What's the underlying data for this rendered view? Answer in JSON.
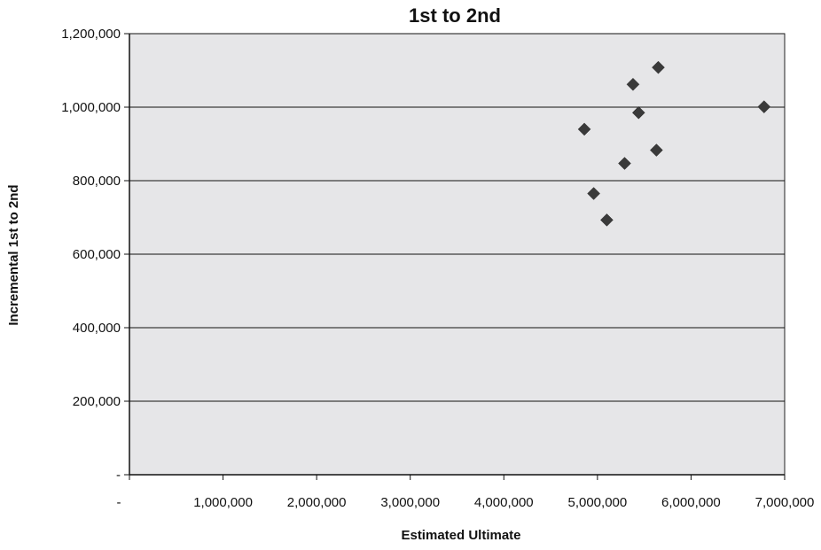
{
  "chart_data": {
    "type": "scatter",
    "title": "1st to 2nd",
    "xlabel": "Estimated Ultimate",
    "ylabel": "Incremental 1st to 2nd",
    "xlim": [
      0,
      7000000
    ],
    "ylim": [
      0,
      1200000
    ],
    "x_ticks": [
      0,
      1000000,
      2000000,
      3000000,
      4000000,
      5000000,
      6000000,
      7000000
    ],
    "x_tick_labels": [
      "-",
      "1,000,000",
      "2,000,000",
      "3,000,000",
      "4,000,000",
      "5,000,000",
      "6,000,000",
      "7,000,000"
    ],
    "y_ticks": [
      0,
      200000,
      400000,
      600000,
      800000,
      1000000,
      1200000
    ],
    "y_tick_labels": [
      "-",
      "200,000",
      "400,000",
      "600,000",
      "800,000",
      "1,000,000",
      "1,200,000"
    ],
    "grid": "horizontal",
    "plot_background": "#e6e6e8",
    "marker": "diamond",
    "marker_color": "#3a3a3a",
    "series": [
      {
        "points": [
          {
            "x": 4860000,
            "y": 940000
          },
          {
            "x": 4960000,
            "y": 765000
          },
          {
            "x": 5100000,
            "y": 693000
          },
          {
            "x": 5290000,
            "y": 847000
          },
          {
            "x": 5380000,
            "y": 1062000
          },
          {
            "x": 5440000,
            "y": 985000
          },
          {
            "x": 5630000,
            "y": 883000
          },
          {
            "x": 5650000,
            "y": 1108000
          },
          {
            "x": 6780000,
            "y": 1001000
          }
        ]
      }
    ]
  }
}
